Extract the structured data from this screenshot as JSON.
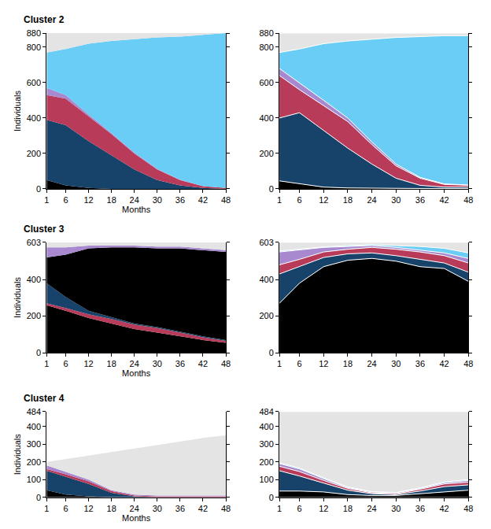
{
  "chart_data": [
    {
      "type": "area",
      "stacked": true,
      "title": "Cluster 2",
      "x_label": "Months",
      "y_label": "Individuals",
      "x": [
        1,
        6,
        12,
        18,
        24,
        30,
        36,
        42,
        48
      ],
      "xlim": [
        1,
        48
      ],
      "xticks": [
        1,
        6,
        12,
        18,
        24,
        30,
        36,
        42,
        48
      ],
      "ylim": [
        0,
        880
      ],
      "yticks": [
        0,
        200,
        400,
        600,
        800,
        880
      ],
      "series": [
        {
          "color": "#000000",
          "values": [
            50,
            20,
            5,
            0,
            0,
            0,
            0,
            0,
            0
          ]
        },
        {
          "color": "#17436b",
          "values": [
            340,
            340,
            265,
            190,
            110,
            50,
            20,
            5,
            0
          ]
        },
        {
          "color": "#b83c5a",
          "values": [
            140,
            150,
            140,
            120,
            90,
            60,
            30,
            10,
            5
          ]
        },
        {
          "color": "#a889cf",
          "values": [
            40,
            20,
            10,
            5,
            5,
            3,
            2,
            0,
            0
          ]
        },
        {
          "color": "#69cdf5",
          "values": [
            200,
            260,
            400,
            520,
            640,
            742,
            808,
            855,
            875
          ]
        },
        {
          "color": "#e4e4e4",
          "values": [
            110,
            90,
            60,
            45,
            35,
            25,
            20,
            10,
            0
          ]
        }
      ]
    },
    {
      "type": "area",
      "stacked": true,
      "x": [
        1,
        6,
        12,
        18,
        24,
        30,
        36,
        42,
        48
      ],
      "xlim": [
        1,
        48
      ],
      "xticks": [
        1,
        6,
        12,
        18,
        24,
        30,
        36,
        42,
        48
      ],
      "ylim": [
        0,
        880
      ],
      "yticks": [
        0,
        200,
        400,
        600,
        800,
        880
      ],
      "series": [
        {
          "color": "#000000",
          "values": [
            45,
            30,
            10,
            5,
            3,
            2,
            2,
            2,
            2
          ]
        },
        {
          "color": "#17436b",
          "values": [
            355,
            400,
            320,
            225,
            137,
            58,
            18,
            8,
            8
          ]
        },
        {
          "color": "#b83c5a",
          "values": [
            240,
            130,
            140,
            150,
            110,
            70,
            40,
            15,
            10
          ]
        },
        {
          "color": "#a889cf",
          "values": [
            40,
            40,
            30,
            20,
            15,
            10,
            5,
            3,
            2
          ]
        },
        {
          "color": "#69cdf5",
          "values": [
            90,
            190,
            320,
            435,
            580,
            715,
            795,
            837,
            843
          ]
        },
        {
          "color": "#e4e4e4",
          "values": [
            110,
            90,
            60,
            45,
            35,
            25,
            20,
            15,
            15
          ]
        }
      ]
    },
    {
      "type": "area",
      "stacked": true,
      "title": "Cluster 3",
      "x_label": "Months",
      "y_label": "Individuals",
      "x": [
        1,
        6,
        12,
        18,
        24,
        30,
        36,
        42,
        48
      ],
      "xlim": [
        1,
        48
      ],
      "xticks": [
        1,
        6,
        12,
        18,
        24,
        30,
        36,
        42,
        48
      ],
      "ylim": [
        0,
        603
      ],
      "yticks": [
        0,
        200,
        400,
        603
      ],
      "series": [
        {
          "color": "#000000",
          "values": [
            260,
            230,
            190,
            160,
            130,
            110,
            90,
            70,
            55
          ]
        },
        {
          "color": "#b83c5a",
          "values": [
            10,
            15,
            20,
            25,
            25,
            25,
            20,
            15,
            10
          ]
        },
        {
          "color": "#17436b",
          "values": [
            110,
            60,
            20,
            10,
            5,
            5,
            5,
            5,
            5
          ]
        },
        {
          "color": "#000000",
          "values": [
            140,
            230,
            340,
            380,
            415,
            430,
            455,
            470,
            480
          ]
        },
        {
          "color": "#a889cf",
          "values": [
            55,
            40,
            15,
            10,
            10,
            10,
            10,
            10,
            10
          ]
        },
        {
          "color": "#e4e4e4",
          "values": [
            28,
            28,
            18,
            18,
            18,
            23,
            23,
            33,
            43
          ]
        }
      ]
    },
    {
      "type": "area",
      "stacked": true,
      "x": [
        1,
        6,
        12,
        18,
        24,
        30,
        36,
        42,
        48
      ],
      "xlim": [
        1,
        48
      ],
      "xticks": [
        1,
        6,
        12,
        18,
        24,
        30,
        36,
        42,
        48
      ],
      "ylim": [
        0,
        603
      ],
      "yticks": [
        0,
        200,
        400,
        603
      ],
      "series": [
        {
          "color": "#000000",
          "values": [
            270,
            380,
            470,
            505,
            515,
            500,
            470,
            460,
            390
          ]
        },
        {
          "color": "#17436b",
          "values": [
            160,
            90,
            50,
            35,
            30,
            30,
            40,
            30,
            50
          ]
        },
        {
          "color": "#b83c5a",
          "values": [
            50,
            40,
            30,
            25,
            30,
            35,
            40,
            40,
            50
          ]
        },
        {
          "color": "#a889cf",
          "values": [
            70,
            50,
            25,
            15,
            10,
            10,
            10,
            15,
            25
          ]
        },
        {
          "color": "#69cdf5",
          "values": [
            5,
            5,
            3,
            5,
            5,
            10,
            20,
            25,
            30
          ]
        },
        {
          "color": "#e4e4e4",
          "values": [
            48,
            38,
            25,
            18,
            13,
            18,
            23,
            33,
            58
          ]
        }
      ]
    },
    {
      "type": "area",
      "stacked": true,
      "title": "Cluster 4",
      "x_label": "Months",
      "y_label": "Individuals",
      "x": [
        1,
        6,
        12,
        18,
        24,
        30,
        36,
        42,
        48
      ],
      "xlim": [
        1,
        48
      ],
      "xticks": [
        1,
        6,
        12,
        18,
        24,
        30,
        36,
        42,
        48
      ],
      "ylim": [
        0,
        484
      ],
      "yticks": [
        0,
        100,
        200,
        300,
        400,
        484
      ],
      "series": [
        {
          "color": "#000000",
          "values": [
            40,
            15,
            5,
            0,
            0,
            0,
            0,
            0,
            0
          ]
        },
        {
          "color": "#17436b",
          "values": [
            110,
            100,
            70,
            25,
            5,
            0,
            0,
            0,
            0
          ]
        },
        {
          "color": "#b83c5a",
          "values": [
            10,
            15,
            15,
            10,
            5,
            5,
            5,
            5,
            5
          ]
        },
        {
          "color": "#a889cf",
          "values": [
            20,
            15,
            10,
            5,
            5,
            5,
            5,
            5,
            5
          ]
        },
        {
          "color": "#e4e4e4",
          "values": [
            20,
            70,
            135,
            215,
            260,
            285,
            305,
            325,
            340
          ]
        }
      ]
    },
    {
      "type": "area",
      "stacked": true,
      "x": [
        1,
        6,
        12,
        18,
        24,
        30,
        36,
        42,
        48
      ],
      "xlim": [
        1,
        48
      ],
      "xticks": [
        1,
        6,
        12,
        18,
        24,
        30,
        36,
        42,
        48
      ],
      "ylim": [
        0,
        484
      ],
      "yticks": [
        0,
        100,
        200,
        300,
        400,
        484
      ],
      "series": [
        {
          "color": "#000000",
          "values": [
            35,
            35,
            30,
            15,
            10,
            10,
            20,
            30,
            40
          ]
        },
        {
          "color": "#17436b",
          "values": [
            115,
            85,
            50,
            25,
            10,
            5,
            15,
            30,
            30
          ]
        },
        {
          "color": "#b83c5a",
          "values": [
            25,
            25,
            15,
            10,
            5,
            5,
            10,
            15,
            15
          ]
        },
        {
          "color": "#a889cf",
          "values": [
            15,
            15,
            10,
            5,
            5,
            5,
            5,
            7,
            10
          ]
        },
        {
          "color": "#69cdf5",
          "values": [
            5,
            5,
            5,
            3,
            2,
            2,
            3,
            5,
            5
          ]
        },
        {
          "color": "#e4e4e4",
          "values": [
            289,
            319,
            374,
            426,
            452,
            457,
            431,
            397,
            384
          ]
        }
      ]
    }
  ]
}
